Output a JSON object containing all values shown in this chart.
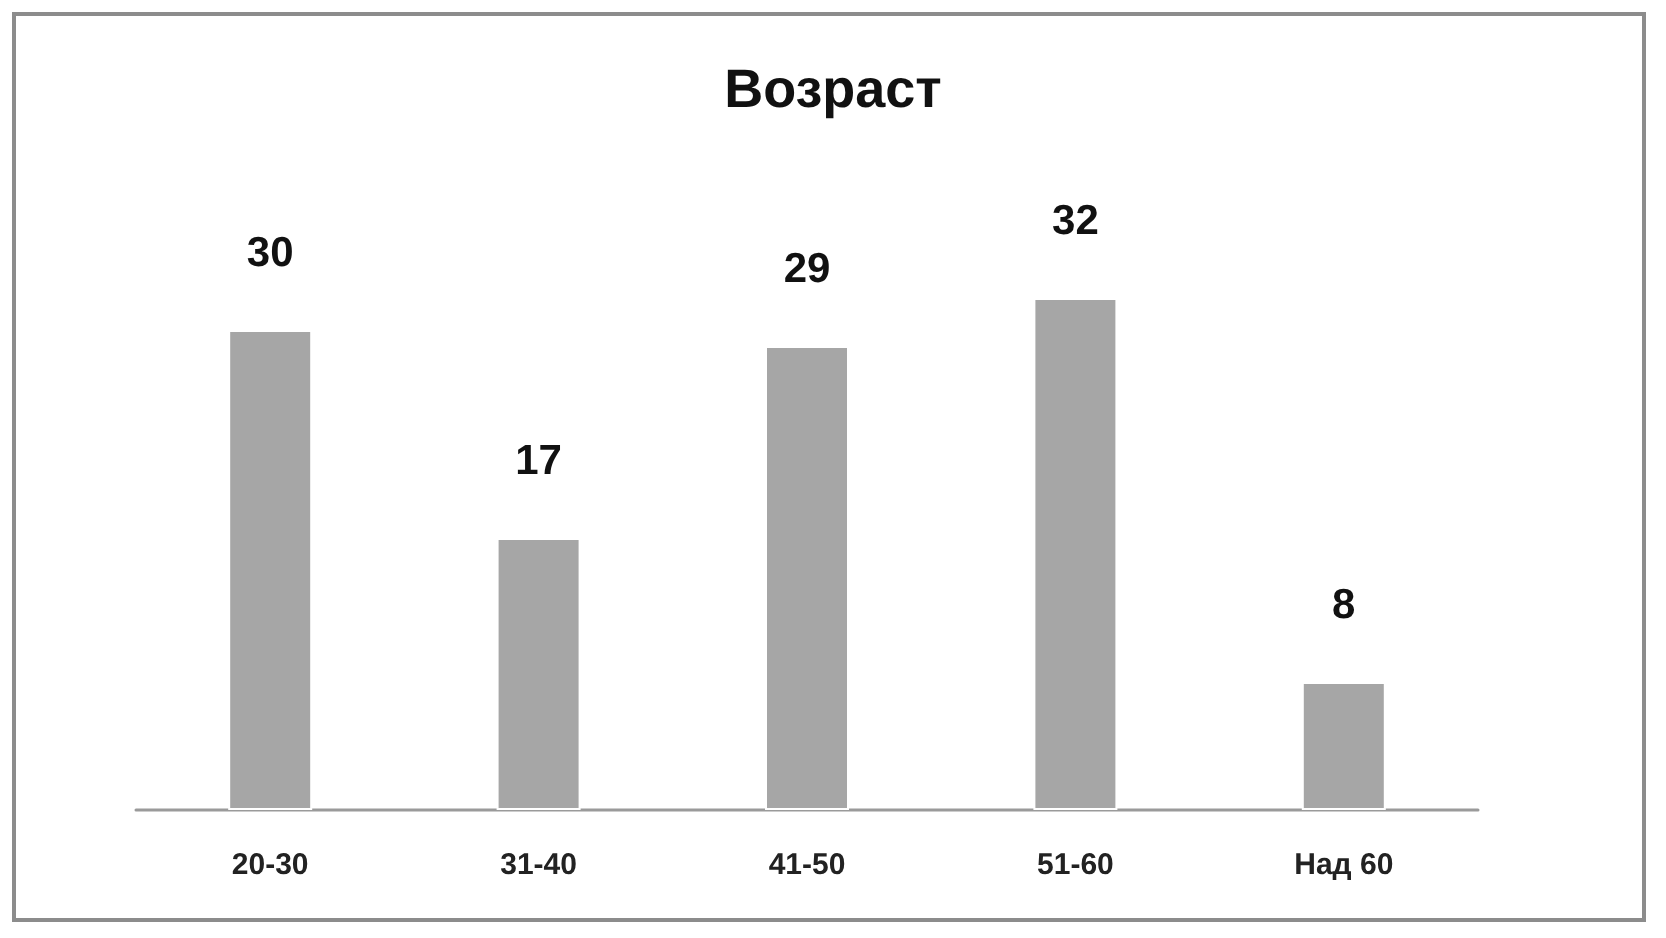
{
  "chart_data": {
    "type": "bar",
    "title": "Возраст",
    "categories": [
      "20-30",
      "31-40",
      "41-50",
      "51-60",
      "Над 60"
    ],
    "values": [
      30,
      17,
      29,
      32,
      8
    ],
    "color": "#a6a6a6",
    "data_labels": true
  }
}
